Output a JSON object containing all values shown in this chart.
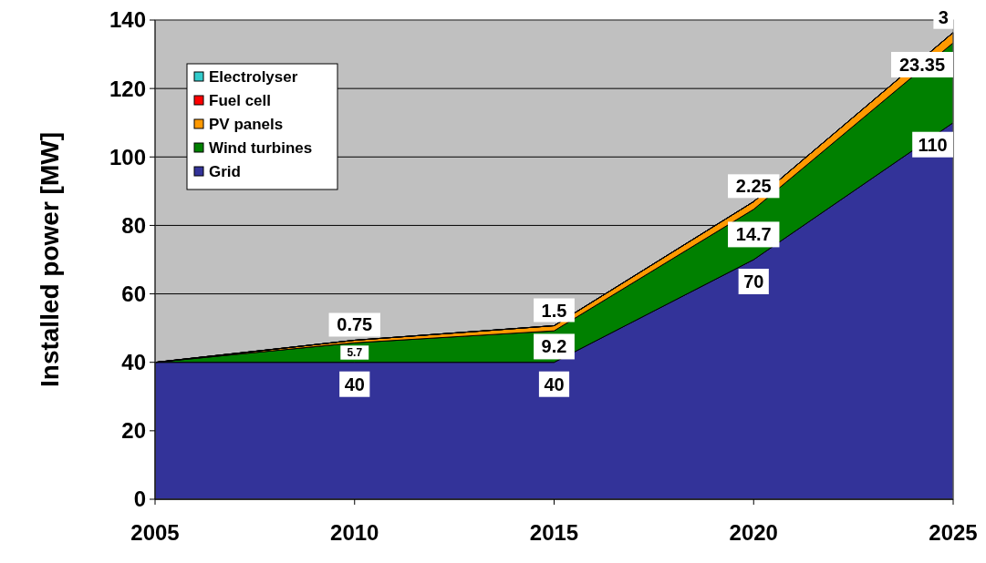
{
  "chart_data": {
    "type": "area",
    "stacked": true,
    "ylabel": "Installed power [MW]",
    "x": [
      2005,
      2010,
      2015,
      2020,
      2025
    ],
    "xlim": [
      2005,
      2025
    ],
    "xticks": [
      2005,
      2010,
      2015,
      2020,
      2025
    ],
    "ylim": [
      0,
      140
    ],
    "yticks": [
      0,
      20,
      40,
      60,
      80,
      100,
      120,
      140
    ],
    "grid": "y",
    "legend": "top left",
    "series": [
      {
        "name": "Grid",
        "color": "#333399",
        "values": [
          40,
          40,
          40,
          70,
          110
        ],
        "value_labels": [
          null,
          "40",
          "40",
          "70",
          "110"
        ]
      },
      {
        "name": "Wind turbines",
        "color": "#008000",
        "values": [
          0,
          5.7,
          9.2,
          14.7,
          23.35
        ],
        "value_labels": [
          null,
          "5.7",
          "9.2",
          "14.7",
          "23.35"
        ]
      },
      {
        "name": "PV panels",
        "color": "#ff9900",
        "values": [
          0,
          0.75,
          1.5,
          2.25,
          3
        ],
        "value_labels": [
          null,
          "0.75",
          "1.5",
          "2.25",
          "3"
        ]
      },
      {
        "name": "Fuel cell",
        "color": "#ff0000",
        "values": [
          null,
          null,
          null,
          null,
          null
        ]
      },
      {
        "name": "Electrolyser",
        "color": "#33cccc",
        "values": [
          null,
          null,
          null,
          null,
          null
        ]
      }
    ]
  }
}
